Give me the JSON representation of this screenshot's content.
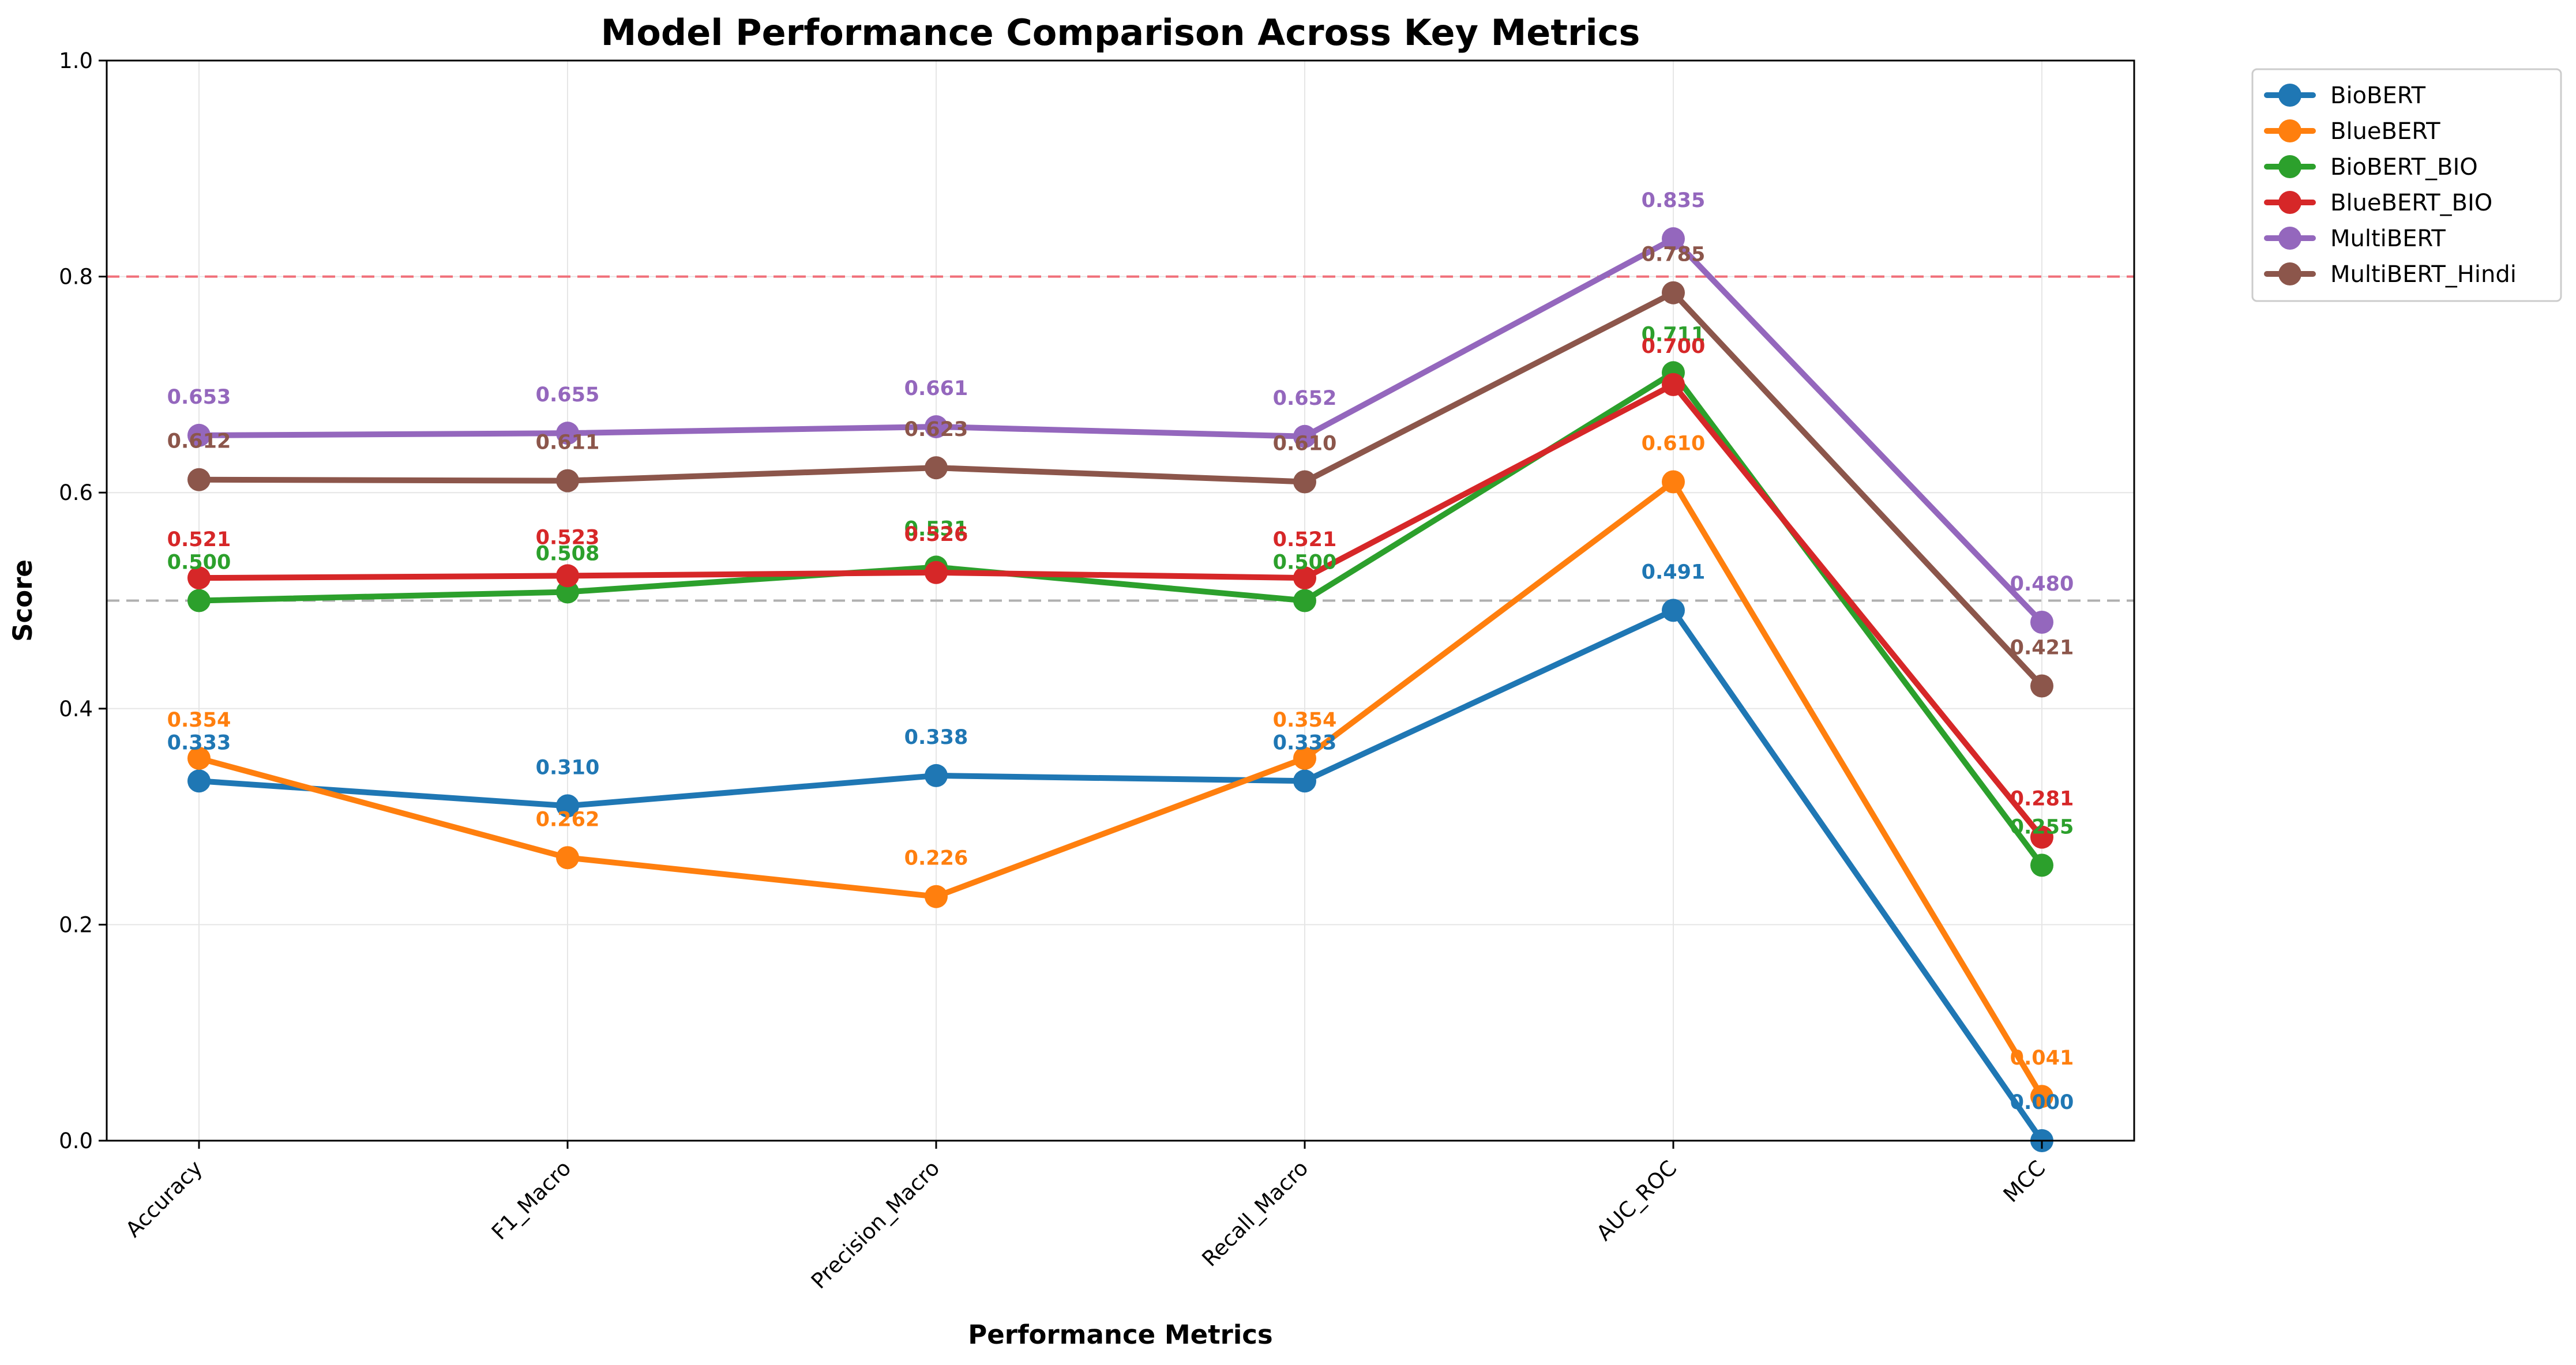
{
  "chart_data": {
    "type": "line",
    "title": "Model Performance Comparison Across Key Metrics",
    "xlabel": "Performance Metrics",
    "ylabel": "Score",
    "ylim": [
      0,
      1
    ],
    "yticks": [
      "0.0",
      "0.2",
      "0.4",
      "0.6",
      "0.8",
      "1.0"
    ],
    "categories": [
      "Accuracy",
      "F1_Macro",
      "Precision_Macro",
      "Recall_Macro",
      "AUC_ROC",
      "MCC"
    ],
    "reference_lines": [
      {
        "y": 0.8,
        "color": "#f0707a",
        "style": "dashed"
      },
      {
        "y": 0.5,
        "color": "#b0b0b0",
        "style": "dashed"
      }
    ],
    "grid": true,
    "legend_position": "outside-top-right",
    "series": [
      {
        "name": "BioBERT",
        "color": "#1f77b4",
        "values": [
          0.333,
          0.31,
          0.338,
          0.333,
          0.491,
          0.0
        ],
        "labels": [
          "0.333",
          "0.310",
          "0.338",
          "0.333",
          "0.491",
          "0.000"
        ]
      },
      {
        "name": "BlueBERT",
        "color": "#ff7f0e",
        "values": [
          0.354,
          0.262,
          0.226,
          0.354,
          0.61,
          0.041
        ],
        "labels": [
          "0.354",
          "0.262",
          "0.226",
          "0.354",
          "0.610",
          "0.041"
        ]
      },
      {
        "name": "BioBERT_BIO",
        "color": "#2ca02c",
        "values": [
          0.5,
          0.508,
          0.531,
          0.5,
          0.711,
          0.255
        ],
        "labels": [
          "0.500",
          "0.508",
          "0.531",
          "0.500",
          "0.711",
          "0.255"
        ]
      },
      {
        "name": "BlueBERT_BIO",
        "color": "#d62728",
        "values": [
          0.521,
          0.523,
          0.526,
          0.521,
          0.7,
          0.281
        ],
        "labels": [
          "0.521",
          "0.523",
          "0.526",
          "0.521",
          "0.700",
          "0.281"
        ]
      },
      {
        "name": "MultiBERT",
        "color": "#9467bd",
        "values": [
          0.653,
          0.655,
          0.661,
          0.652,
          0.835,
          0.48
        ],
        "labels": [
          "0.653",
          "0.655",
          "0.661",
          "0.652",
          "0.835",
          "0.480"
        ]
      },
      {
        "name": "MultiBERT_Hindi",
        "color": "#8c564b",
        "values": [
          0.612,
          0.611,
          0.623,
          0.61,
          0.785,
          0.421
        ],
        "labels": [
          "0.612",
          "0.611",
          "0.623",
          "0.610",
          "0.785",
          "0.421"
        ]
      }
    ]
  }
}
